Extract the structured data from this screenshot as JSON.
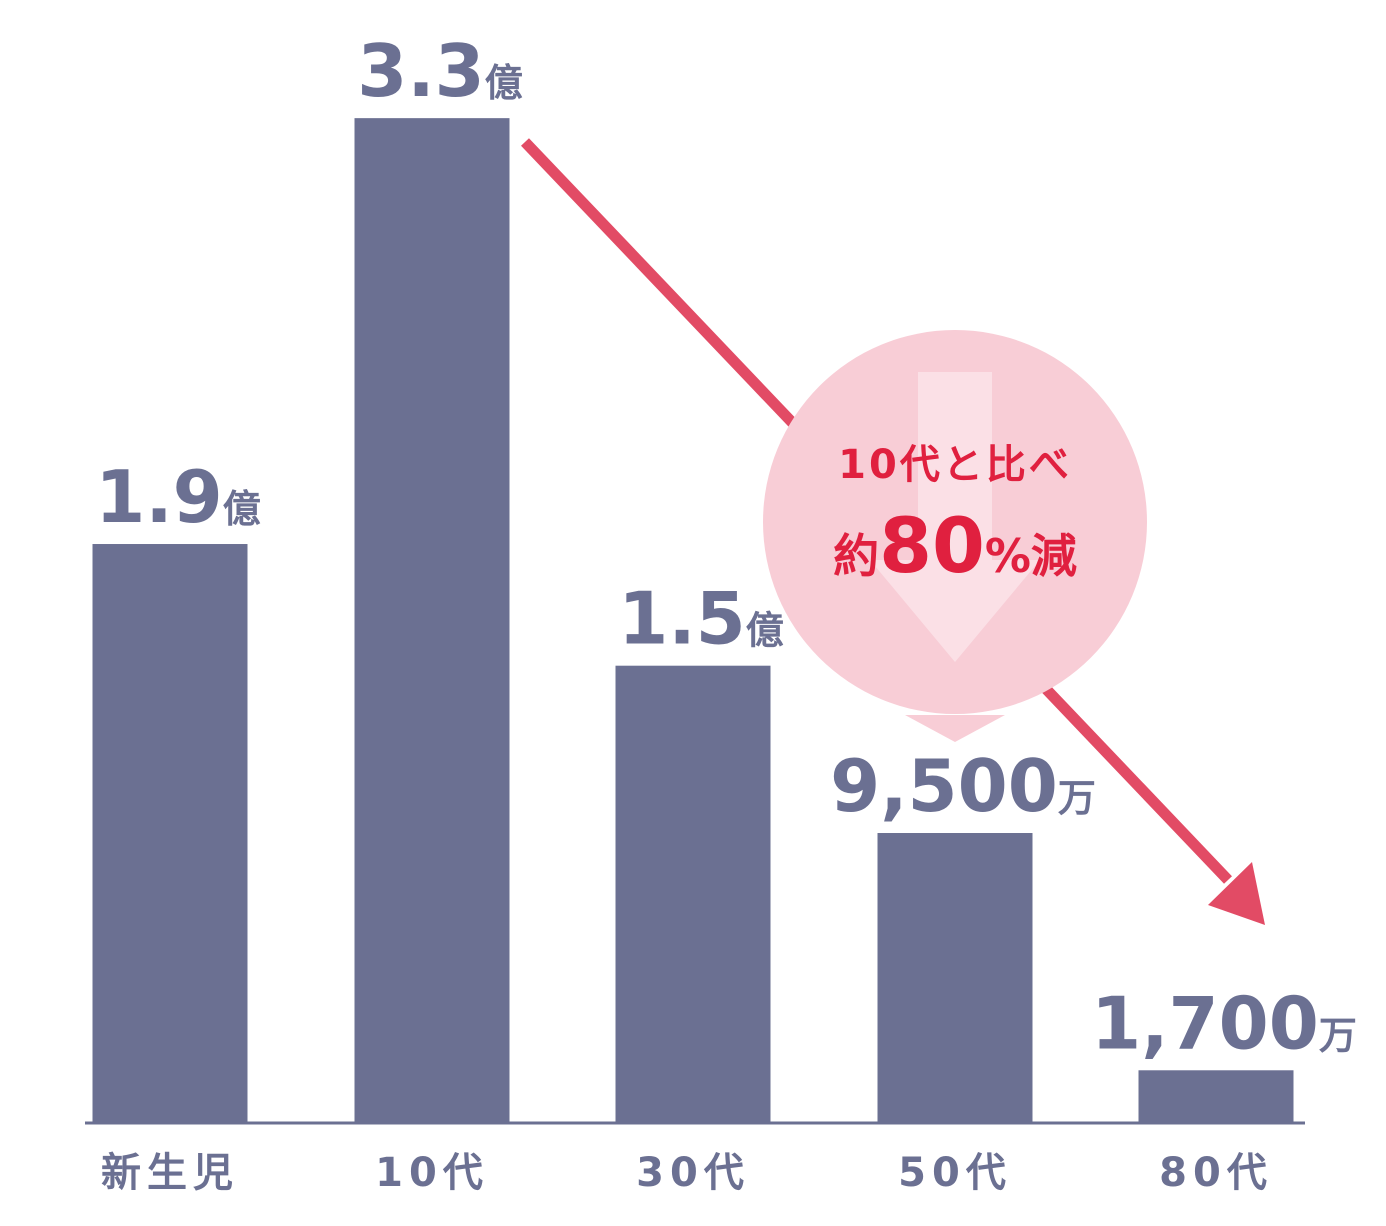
{
  "chart_data": {
    "type": "bar",
    "categories": [
      "新生児",
      "10代",
      "30代",
      "50代",
      "80代"
    ],
    "values": [
      19000,
      33000,
      15000,
      9500,
      1700
    ],
    "value_labels": [
      "1.9億",
      "3.3億",
      "1.5億",
      "9,500万",
      "1,700万"
    ],
    "color": "#6b7092",
    "annotation": [
      "10代と比べ",
      "約80%減"
    ],
    "annotation_color": "#e0203f",
    "arrow_color": "#e24b65"
  }
}
